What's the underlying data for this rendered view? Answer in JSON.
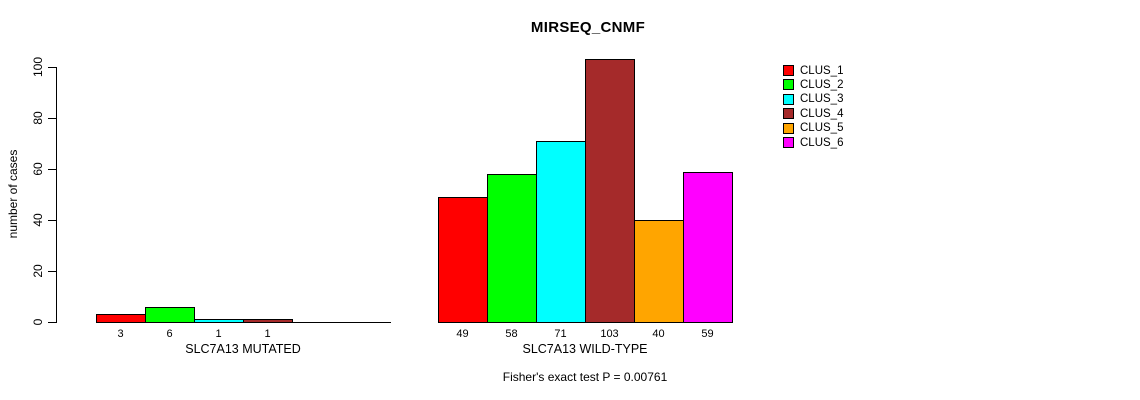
{
  "chart_data": {
    "type": "bar",
    "title": "MIRSEQ_CNMF",
    "ylabel": "number of cases",
    "ylim": [
      0,
      100
    ],
    "yticks": [
      0,
      20,
      40,
      60,
      80,
      100
    ],
    "grid": false,
    "legend_position": "right",
    "series": [
      {
        "name": "CLUS_1",
        "color": "#FF0000"
      },
      {
        "name": "CLUS_2",
        "color": "#00FF00"
      },
      {
        "name": "CLUS_3",
        "color": "#00FFFF"
      },
      {
        "name": "CLUS_4",
        "color": "#A52A2A"
      },
      {
        "name": "CLUS_5",
        "color": "#FFA500"
      },
      {
        "name": "CLUS_6",
        "color": "#FF00FF"
      }
    ],
    "groups": [
      {
        "label": "SLC7A13 MUTATED",
        "values": [
          3,
          6,
          1,
          1,
          0,
          0
        ],
        "value_labels": [
          "3",
          "6",
          "1",
          "1",
          "",
          ""
        ]
      },
      {
        "label": "SLC7A13 WILD-TYPE",
        "values": [
          49,
          58,
          71,
          103,
          40,
          59
        ],
        "value_labels": [
          "49",
          "58",
          "71",
          "103",
          "40",
          "59"
        ]
      }
    ],
    "annotation": "Fisher's exact test P = 0.00761"
  }
}
